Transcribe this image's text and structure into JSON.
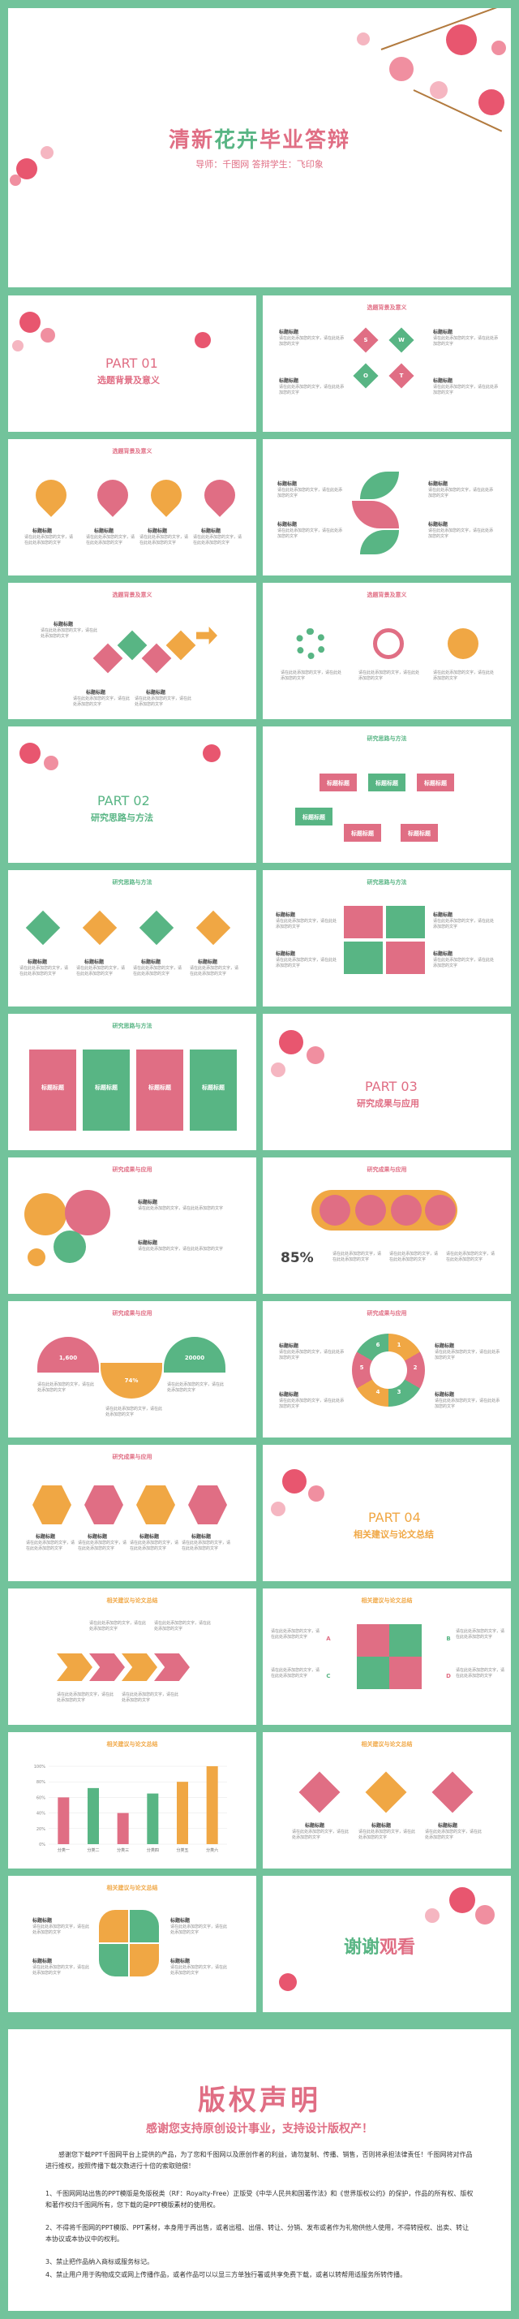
{
  "colors": {
    "pink": "#e06e84",
    "green": "#58b584",
    "orange": "#f0a744",
    "frame": "#72c39b"
  },
  "hero": {
    "title_part1": "清新",
    "title_part2": "花卉",
    "title_part3": "毕业答辩",
    "subtitle": "导师：千图网      答辩学生：飞印象"
  },
  "common": {
    "title_label": "标题标题",
    "body_text": "请在此处添加您的文字，请在此处添加您的文字",
    "letters": [
      "S",
      "W",
      "O",
      "T"
    ],
    "abcd": [
      "A",
      "B",
      "C",
      "D"
    ],
    "circle_nums": [
      "1",
      "2",
      "3",
      "4",
      "5",
      "6"
    ]
  },
  "sections": {
    "s1": "选题背景及意义",
    "s2": "研究思路与方法",
    "s3": "研究成果与应用",
    "s4": "相关建议与论文总结"
  },
  "parts": {
    "p1": {
      "num": "PART 01",
      "sub": "选题背景及意义"
    },
    "p2": {
      "num": "PART 02",
      "sub": "研究思路与方法"
    },
    "p3": {
      "num": "PART 03",
      "sub": "研究成果与应用"
    },
    "p4": {
      "num": "PART 04",
      "sub": "相关建议与论文总结"
    }
  },
  "stats": {
    "percent": "85%",
    "n1": "1,600",
    "n2": "74%",
    "n3": "20000"
  },
  "bar_chart": {
    "categories": [
      "分类一",
      "分类二",
      "分类三",
      "分类四",
      "分类五",
      "分类六"
    ],
    "values": [
      60,
      72,
      40,
      65,
      80,
      100
    ],
    "yticks": [
      "0%",
      "20%",
      "40%",
      "60%",
      "80%",
      "100%"
    ]
  },
  "thanks": {
    "part1": "谢谢",
    "part2": "观看"
  },
  "copyright": {
    "title": "版权声明",
    "subtitle": "感谢您支持原创设计事业，支持设计版权产！",
    "intro": "感谢您下载PPT千图网平台上提供的产品，为了您和千图网以及原创作者的利益，请勿复制、传播、销售，否则将承担法律责任！千图网将对作品进行维权，按照传播下载次数进行十倍的索取赔偿！",
    "items": [
      "1、千图网网站出售的PPT模版是免版税类（RF：Royalty-Free）正版受《中华人民共和国著作法》和《世界版权公约》的保护，作品的所有权、版权和著作权归千图网所有，您下载的是PPT模版素材的使用权。",
      "2、不得将千图网的PPT模版、PPT素材，本身用于再出售，或者出租、出借、转让、分销、发布或者作为礼物供他人使用，不得转授权、出卖、转让本协议或本协议中的权利。",
      "3、禁止把作品纳入商标或服务标记。",
      "4、禁止用户用于购物成交或网上传播作品，或者作品可以以显三方单独行署或共享免费下载，或者以转帮用适服务所转传播。"
    ]
  }
}
